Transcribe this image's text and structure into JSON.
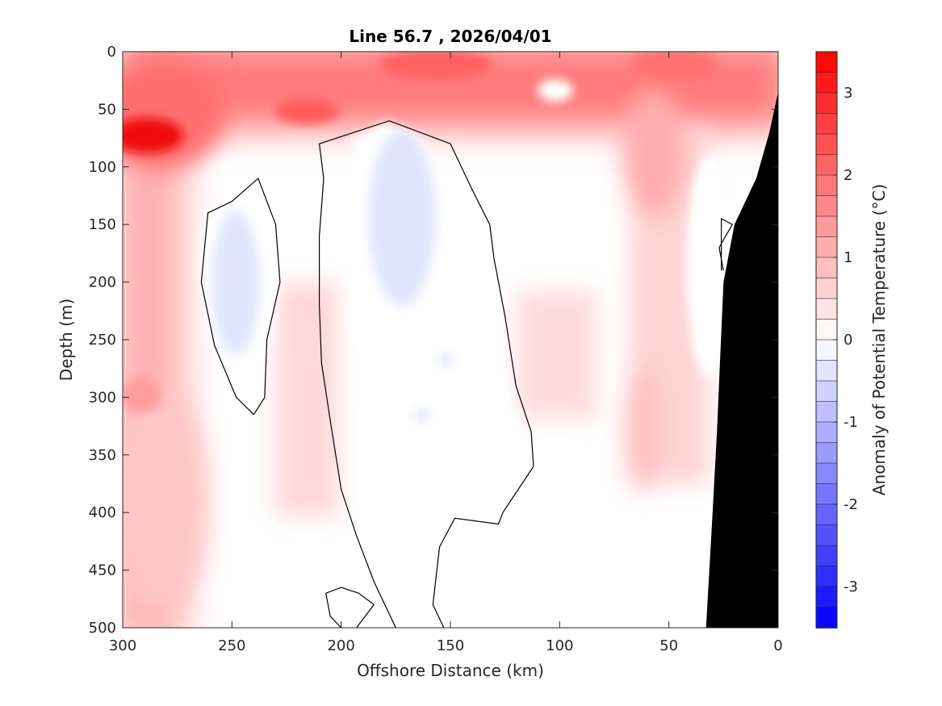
{
  "chart_data": {
    "type": "heatmap",
    "title": "Line 56.7 , 2026/04/01",
    "xlabel": "Offshore Distance (km)",
    "ylabel": "Depth (m)",
    "colorbar_label": "Anomaly of Potential Temperature (°C)",
    "xlim": [
      300,
      0
    ],
    "ylim": [
      0,
      500
    ],
    "x_reversed": true,
    "y_reversed": true,
    "x_ticks": [
      300,
      250,
      200,
      150,
      100,
      50,
      0
    ],
    "y_ticks": [
      0,
      50,
      100,
      150,
      200,
      250,
      300,
      350,
      400,
      450,
      500
    ],
    "colorbar_range": [
      -3.5,
      3.5
    ],
    "colorbar_levels": 28,
    "colorbar_ticks": [
      3,
      2,
      1,
      0,
      -1,
      -2,
      -3
    ],
    "colors": {
      "positive": "#ff0000",
      "negative": "#0000ff",
      "zero": "#ffffff",
      "bathymetry": "#000000",
      "contour": "#000000"
    },
    "features": [
      {
        "kind": "warm-surface-layer",
        "x_range": [
          300,
          0
        ],
        "depth_range": [
          0,
          60
        ],
        "anomaly": 1.5
      },
      {
        "kind": "warm-core",
        "x": 290,
        "depth": 72,
        "anomaly": 3.0
      },
      {
        "kind": "warm-offshore-band",
        "x_range": [
          300,
          265
        ],
        "depth_range": [
          60,
          500
        ],
        "anomaly": 0.9
      },
      {
        "kind": "cold-patch",
        "x": 245,
        "depth": 210,
        "anomaly": -0.3
      },
      {
        "kind": "cold-patch",
        "x": 165,
        "depth": 150,
        "anomaly": -0.3
      },
      {
        "kind": "warm-tongue",
        "x": 56,
        "depth": 100,
        "anomaly": 1.0
      },
      {
        "kind": "warm-tongue",
        "x": 58,
        "depth": 330,
        "anomaly": 0.5
      }
    ],
    "zero_contours": [
      {
        "id": "contour-west",
        "points": [
          [
            240,
            315
          ],
          [
            248,
            300
          ],
          [
            258,
            255
          ],
          [
            264,
            200
          ],
          [
            261,
            140
          ],
          [
            250,
            130
          ],
          [
            238,
            110
          ],
          [
            230,
            150
          ],
          [
            228,
            200
          ],
          [
            234,
            250
          ],
          [
            235,
            300
          ],
          [
            240,
            315
          ]
        ]
      },
      {
        "id": "contour-central",
        "points": [
          [
            175,
            500
          ],
          [
            185,
            460
          ],
          [
            193,
            420
          ],
          [
            200,
            380
          ],
          [
            205,
            320
          ],
          [
            209,
            270
          ],
          [
            210,
            220
          ],
          [
            210,
            160
          ],
          [
            208,
            110
          ],
          [
            210,
            80
          ],
          [
            178,
            60
          ],
          [
            150,
            80
          ],
          [
            140,
            120
          ],
          [
            132,
            150
          ],
          [
            130,
            180
          ],
          [
            125,
            230
          ],
          [
            120,
            290
          ],
          [
            113,
            330
          ],
          [
            112,
            360
          ],
          [
            126,
            400
          ],
          [
            128,
            410
          ],
          [
            148,
            405
          ],
          [
            155,
            430
          ],
          [
            158,
            480
          ],
          [
            153,
            500
          ]
        ]
      },
      {
        "id": "contour-small",
        "points": [
          [
            200,
            500
          ],
          [
            205,
            490
          ],
          [
            207,
            470
          ],
          [
            200,
            465
          ],
          [
            192,
            470
          ],
          [
            185,
            480
          ],
          [
            193,
            500
          ]
        ]
      },
      {
        "id": "contour-coast",
        "points": [
          [
            25,
            190
          ],
          [
            27,
            170
          ],
          [
            21,
            150
          ],
          [
            26,
            145
          ],
          [
            26,
            190
          ]
        ]
      }
    ],
    "bathymetry": [
      [
        33,
        500
      ],
      [
        30,
        400
      ],
      [
        28,
        330
      ],
      [
        25,
        200
      ],
      [
        20,
        150
      ],
      [
        10,
        110
      ],
      [
        4,
        70
      ],
      [
        0,
        35
      ],
      [
        0,
        500
      ]
    ]
  }
}
